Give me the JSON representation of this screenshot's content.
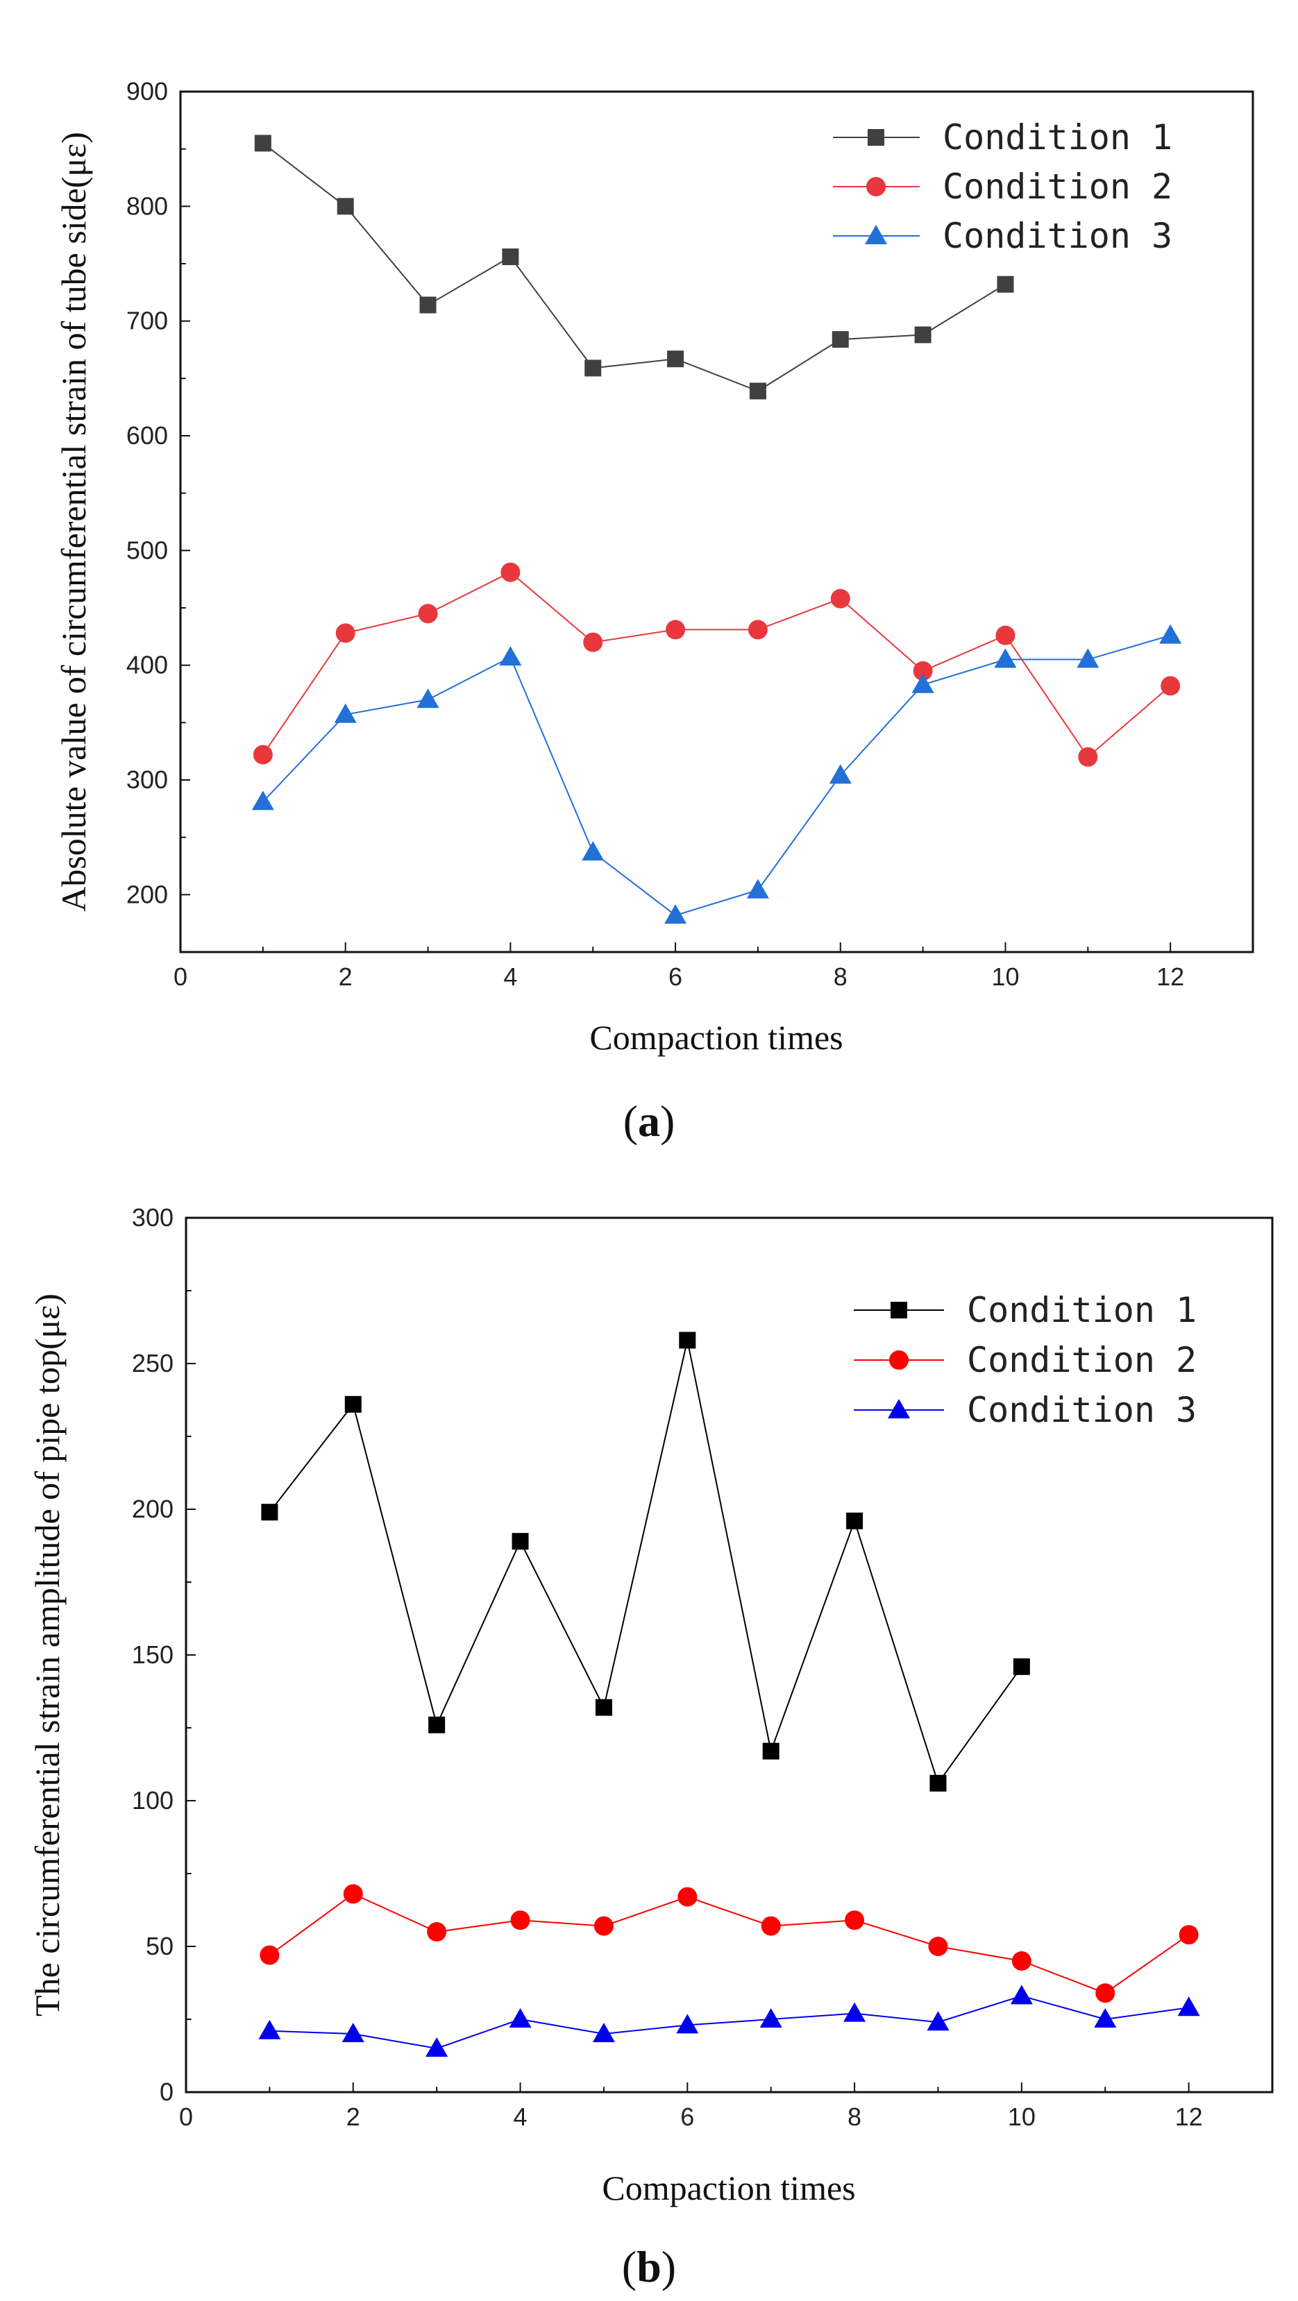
{
  "chart_data": [
    {
      "type": "line",
      "panel_label": {
        "open": "(",
        "letter": "a",
        "close": ")"
      },
      "title": "",
      "xlabel": "Compaction times",
      "ylabel": "Absolute value of circumferential strain of tube side(με)",
      "xlim": [
        0,
        13
      ],
      "ylim": [
        150,
        900
      ],
      "xticks": [
        0,
        2,
        4,
        6,
        8,
        10,
        12
      ],
      "yticks": [
        200,
        300,
        400,
        500,
        600,
        700,
        800,
        900
      ],
      "legend_position": "top-right",
      "series": [
        {
          "name": "Condition 1",
          "marker": "square",
          "color": "#404040",
          "x": [
            1,
            2,
            3,
            4,
            5,
            6,
            7,
            8,
            9,
            10
          ],
          "y": [
            855,
            800,
            714,
            756,
            659,
            667,
            639,
            684,
            688,
            732
          ]
        },
        {
          "name": "Condition 2",
          "marker": "circle",
          "color": "#e8383d",
          "x": [
            1,
            2,
            3,
            4,
            5,
            6,
            7,
            8,
            9,
            10,
            11,
            12
          ],
          "y": [
            322,
            428,
            445,
            481,
            420,
            431,
            431,
            458,
            395,
            426,
            320,
            382
          ]
        },
        {
          "name": "Condition 3",
          "marker": "triangle",
          "color": "#2270d8",
          "x": [
            1,
            2,
            3,
            4,
            5,
            6,
            7,
            8,
            9,
            10,
            11,
            12
          ],
          "y": [
            281,
            357,
            370,
            407,
            237,
            182,
            204,
            304,
            383,
            405,
            405,
            426
          ]
        }
      ]
    },
    {
      "type": "line",
      "panel_label": {
        "open": "(",
        "letter": "b",
        "close": ")"
      },
      "title": "",
      "xlabel": "Compaction times",
      "ylabel": "The circumferential strain amplitude of pipe top(με)",
      "xlim": [
        0,
        13
      ],
      "ylim": [
        0,
        300
      ],
      "xticks": [
        0,
        2,
        4,
        6,
        8,
        10,
        12
      ],
      "yticks": [
        0,
        50,
        100,
        150,
        200,
        250,
        300
      ],
      "legend_position": "top-right",
      "series": [
        {
          "name": "Condition 1",
          "marker": "square",
          "color": "#000000",
          "x": [
            1,
            2,
            3,
            4,
            5,
            6,
            7,
            8,
            9,
            10
          ],
          "y": [
            199,
            236,
            126,
            189,
            132,
            258,
            117,
            196,
            106,
            146
          ]
        },
        {
          "name": "Condition 2",
          "marker": "circle",
          "color": "#ff0000",
          "x": [
            1,
            2,
            3,
            4,
            5,
            6,
            7,
            8,
            9,
            10,
            11,
            12
          ],
          "y": [
            47,
            68,
            55,
            59,
            57,
            67,
            57,
            59,
            50,
            45,
            34,
            54
          ]
        },
        {
          "name": "Condition 3",
          "marker": "triangle",
          "color": "#0000ee",
          "x": [
            1,
            2,
            3,
            4,
            5,
            6,
            7,
            8,
            9,
            10,
            11,
            12
          ],
          "y": [
            21,
            20,
            15,
            25,
            20,
            23,
            25,
            27,
            24,
            33,
            25,
            29
          ]
        }
      ]
    }
  ]
}
